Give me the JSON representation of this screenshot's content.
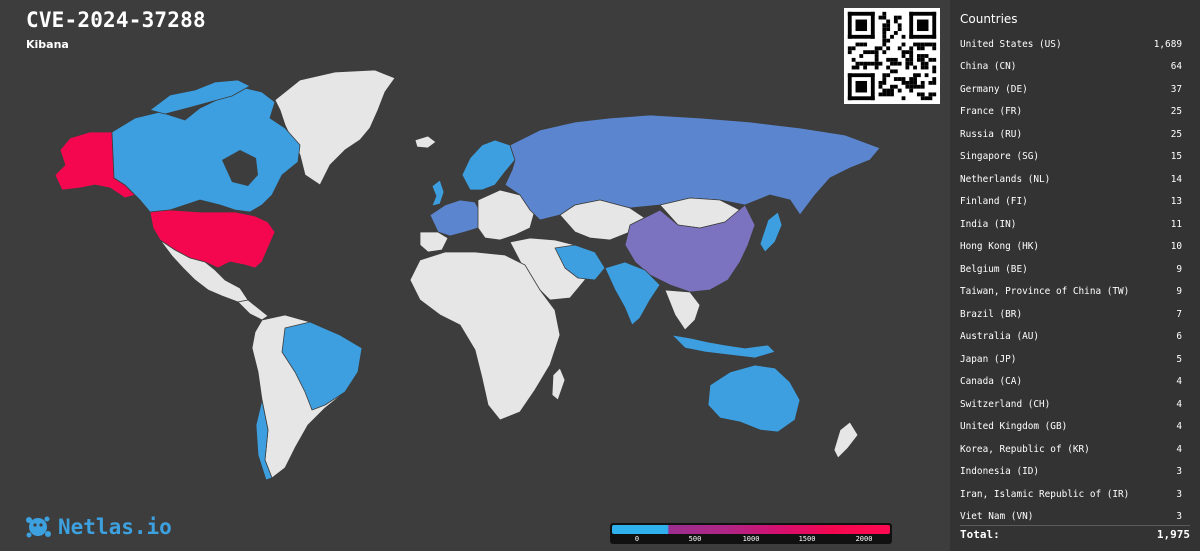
{
  "header": {
    "title": "CVE-2024-37288",
    "subtitle": "Kibana"
  },
  "panel": {
    "title": "Countries",
    "rows": [
      {
        "name": "United States (US)",
        "count": "1,689"
      },
      {
        "name": "China (CN)",
        "count": "64"
      },
      {
        "name": "Germany (DE)",
        "count": "37"
      },
      {
        "name": "France (FR)",
        "count": "25"
      },
      {
        "name": "Russia (RU)",
        "count": "25"
      },
      {
        "name": "Singapore (SG)",
        "count": "15"
      },
      {
        "name": "Netherlands (NL)",
        "count": "14"
      },
      {
        "name": "Finland (FI)",
        "count": "13"
      },
      {
        "name": "India (IN)",
        "count": "11"
      },
      {
        "name": "Hong Kong (HK)",
        "count": "10"
      },
      {
        "name": "Belgium (BE)",
        "count": "9"
      },
      {
        "name": "Taiwan, Province of China (TW)",
        "count": "9"
      },
      {
        "name": "Brazil (BR)",
        "count": "7"
      },
      {
        "name": "Australia (AU)",
        "count": "6"
      },
      {
        "name": "Japan (JP)",
        "count": "5"
      },
      {
        "name": "Canada (CA)",
        "count": "4"
      },
      {
        "name": "Switzerland (CH)",
        "count": "4"
      },
      {
        "name": "United Kingdom (GB)",
        "count": "4"
      },
      {
        "name": "Korea, Republic of (KR)",
        "count": "4"
      },
      {
        "name": "Indonesia (ID)",
        "count": "3"
      },
      {
        "name": "Iran, Islamic Republic of (IR)",
        "count": "3"
      },
      {
        "name": "Viet Nam (VN)",
        "count": "3"
      }
    ],
    "total_label": "Total:",
    "total_value": "1,975"
  },
  "legend": {
    "ticks": [
      "0",
      "500",
      "1000",
      "1500",
      "2000"
    ]
  },
  "logo": {
    "text": "Netlas.io"
  },
  "colors": {
    "background": "#3d3d3d",
    "panel": "#333333",
    "no_data": "#e6e6e6",
    "low": "#3d9fe0",
    "mid_blue": "#5b86cf",
    "purple": "#7b73bf",
    "high": "#f5074f",
    "brand": "#3da1e0"
  },
  "map": {
    "highlighted": [
      {
        "region": "United States",
        "level": "high"
      },
      {
        "region": "Alaska",
        "level": "high"
      },
      {
        "region": "China",
        "level": "purple"
      },
      {
        "region": "Russia",
        "level": "mid_blue"
      },
      {
        "region": "Canada",
        "level": "low"
      },
      {
        "region": "Brazil",
        "level": "low"
      },
      {
        "region": "Australia",
        "level": "low"
      },
      {
        "region": "India",
        "level": "low"
      }
    ]
  }
}
